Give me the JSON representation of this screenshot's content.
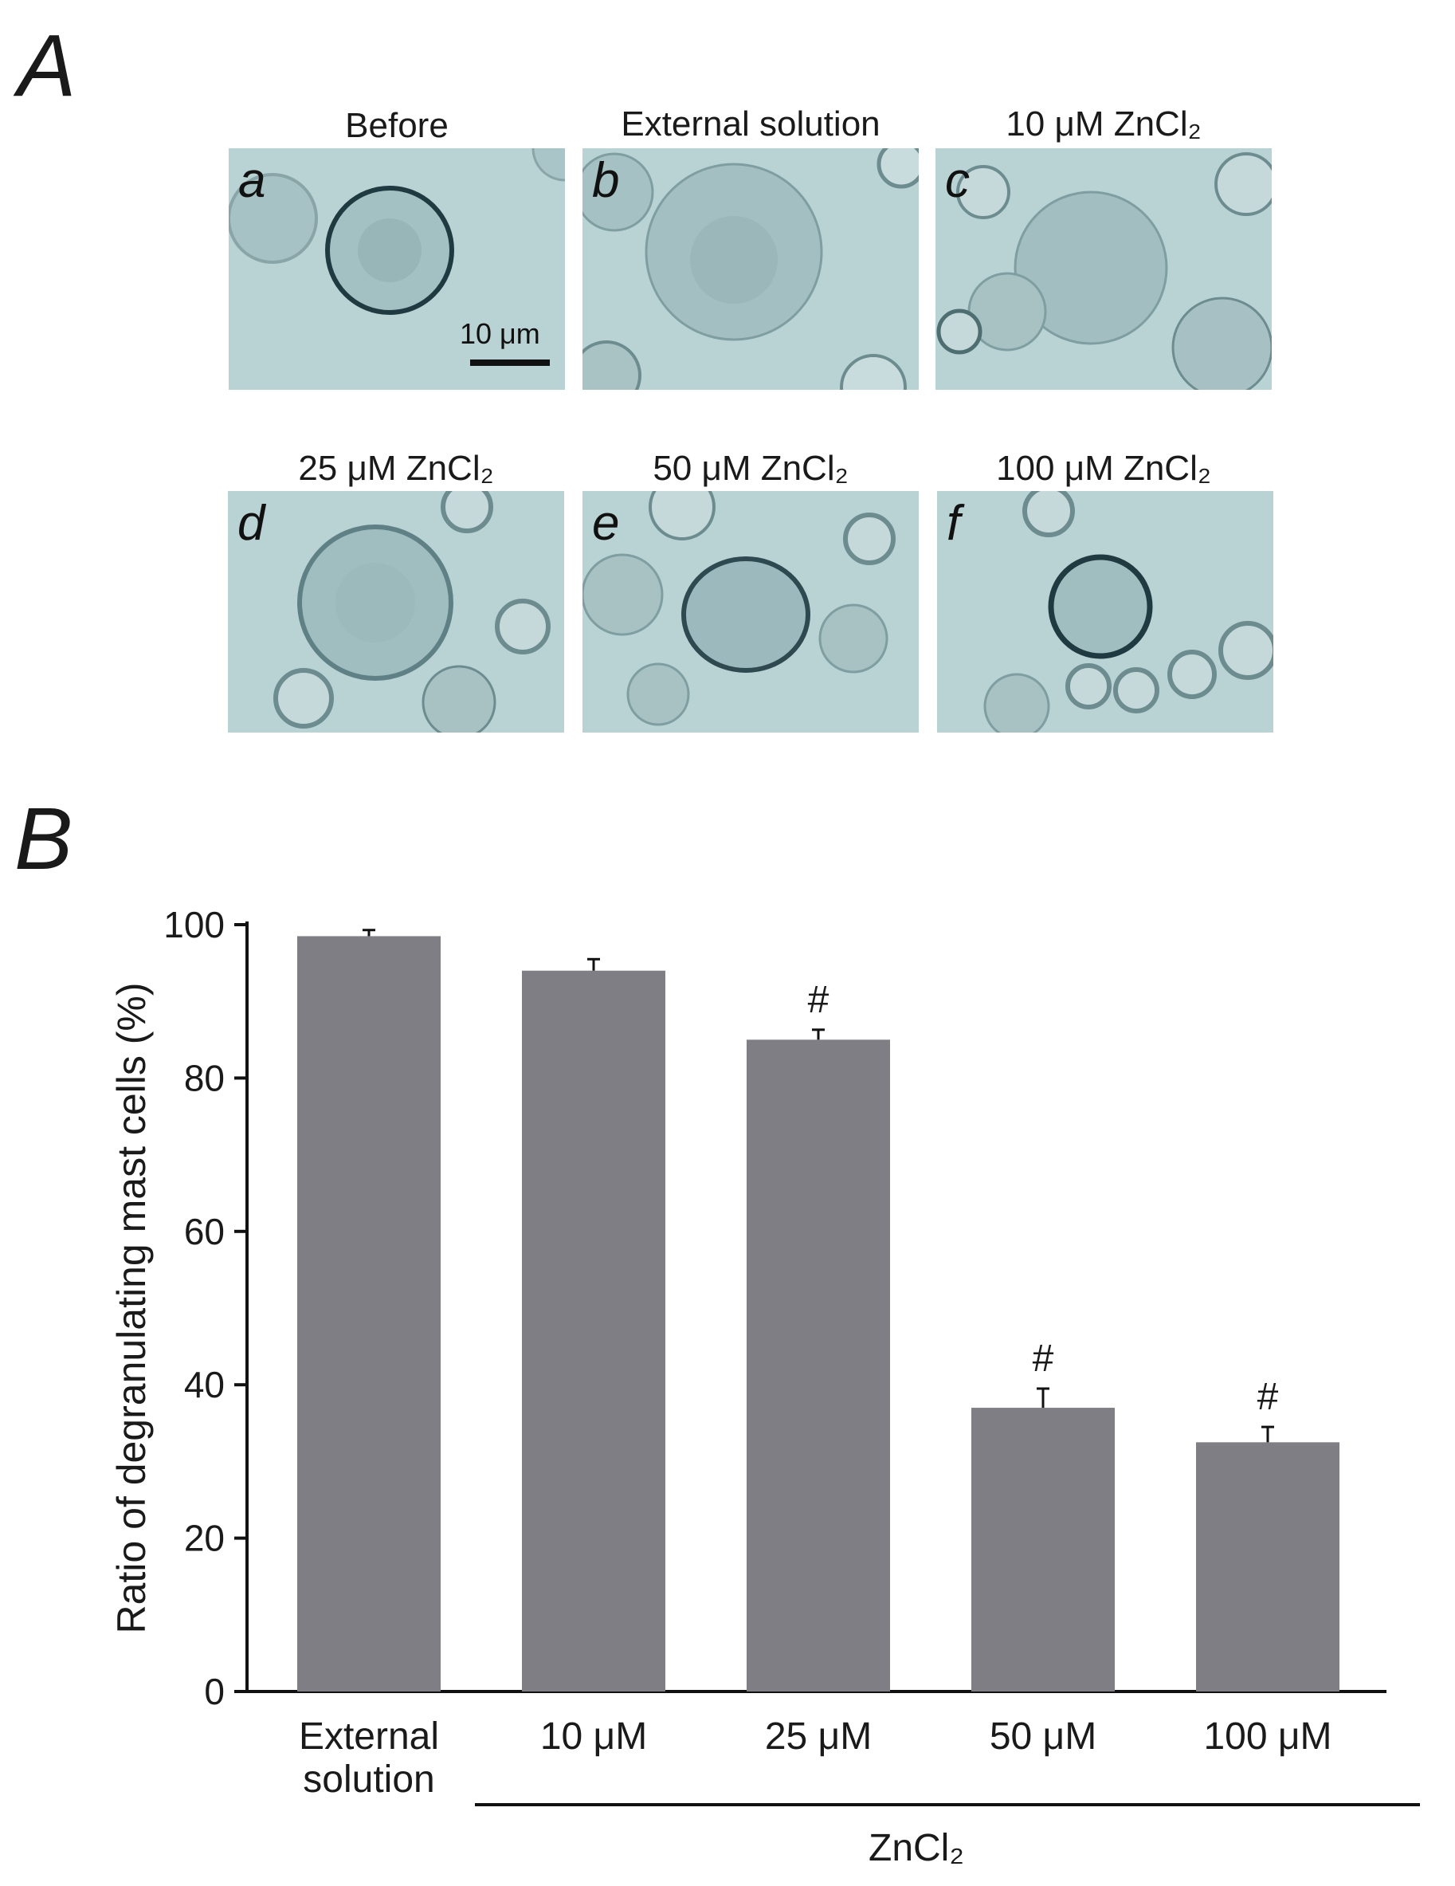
{
  "panels": {
    "A": "A",
    "B": "B"
  },
  "micrographs": [
    {
      "letter": "a",
      "title": "Before",
      "scale_label": "10 μm"
    },
    {
      "letter": "b",
      "title": "External solution"
    },
    {
      "letter": "c",
      "title": "10 μM ZnCl₂"
    },
    {
      "letter": "d",
      "title": "25 μM ZnCl₂"
    },
    {
      "letter": "e",
      "title": "50 μM ZnCl₂"
    },
    {
      "letter": "f",
      "title": "100 μM ZnCl₂"
    }
  ],
  "chart_data": {
    "type": "bar",
    "categories": [
      "External\nsolution",
      "10 μM",
      "25 μM",
      "50 μM",
      "100 μM"
    ],
    "values": [
      98.5,
      94,
      85,
      37,
      32.5
    ],
    "errors": [
      0.8,
      1.5,
      1.3,
      2.5,
      2.0
    ],
    "significance": [
      "",
      "",
      "#",
      "#",
      "#"
    ],
    "ylabel": "Ratio of degranulating mast cells (%)",
    "group_label": "ZnCl₂",
    "ylim": [
      0,
      100
    ],
    "yticks": [
      0,
      20,
      40,
      60,
      80,
      100
    ],
    "bar_color": "#7f7e84"
  }
}
